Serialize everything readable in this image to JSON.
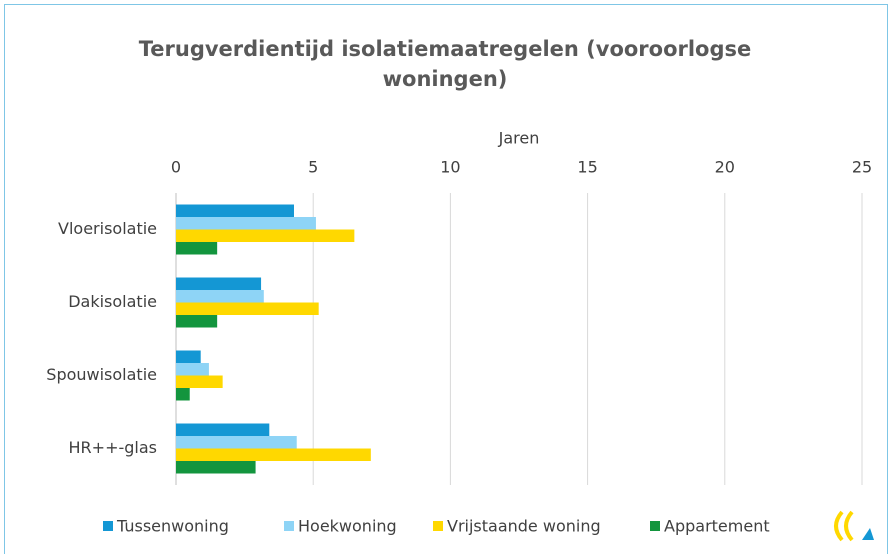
{
  "chart_data": {
    "type": "hbar",
    "title": "Terugverdientijd isolatiemaatregelen (vooroorlogse woningen)",
    "x_label": "Jaren",
    "categories": [
      "Vloerisolatie",
      "Dakisolatie",
      "Spouwisolatie",
      "HR++-glas"
    ],
    "series": [
      {
        "name": "Tussenwoning",
        "color": "#1497d4",
        "values": [
          4.3,
          3.1,
          0.9,
          3.4
        ]
      },
      {
        "name": "Hoekwoning",
        "color": "#8ed4f6",
        "values": [
          5.1,
          3.2,
          1.2,
          4.4
        ]
      },
      {
        "name": "Vrijstaande woning",
        "color": "#ffd800",
        "values": [
          6.5,
          5.2,
          1.7,
          7.1
        ]
      },
      {
        "name": "Appartement",
        "color": "#13953e",
        "values": [
          1.5,
          1.5,
          0.5,
          2.9
        ]
      }
    ],
    "xlim": [
      0,
      25
    ],
    "xticks": [
      0,
      5,
      10,
      15,
      20,
      25
    ],
    "grid": true,
    "legend": "bottom"
  }
}
